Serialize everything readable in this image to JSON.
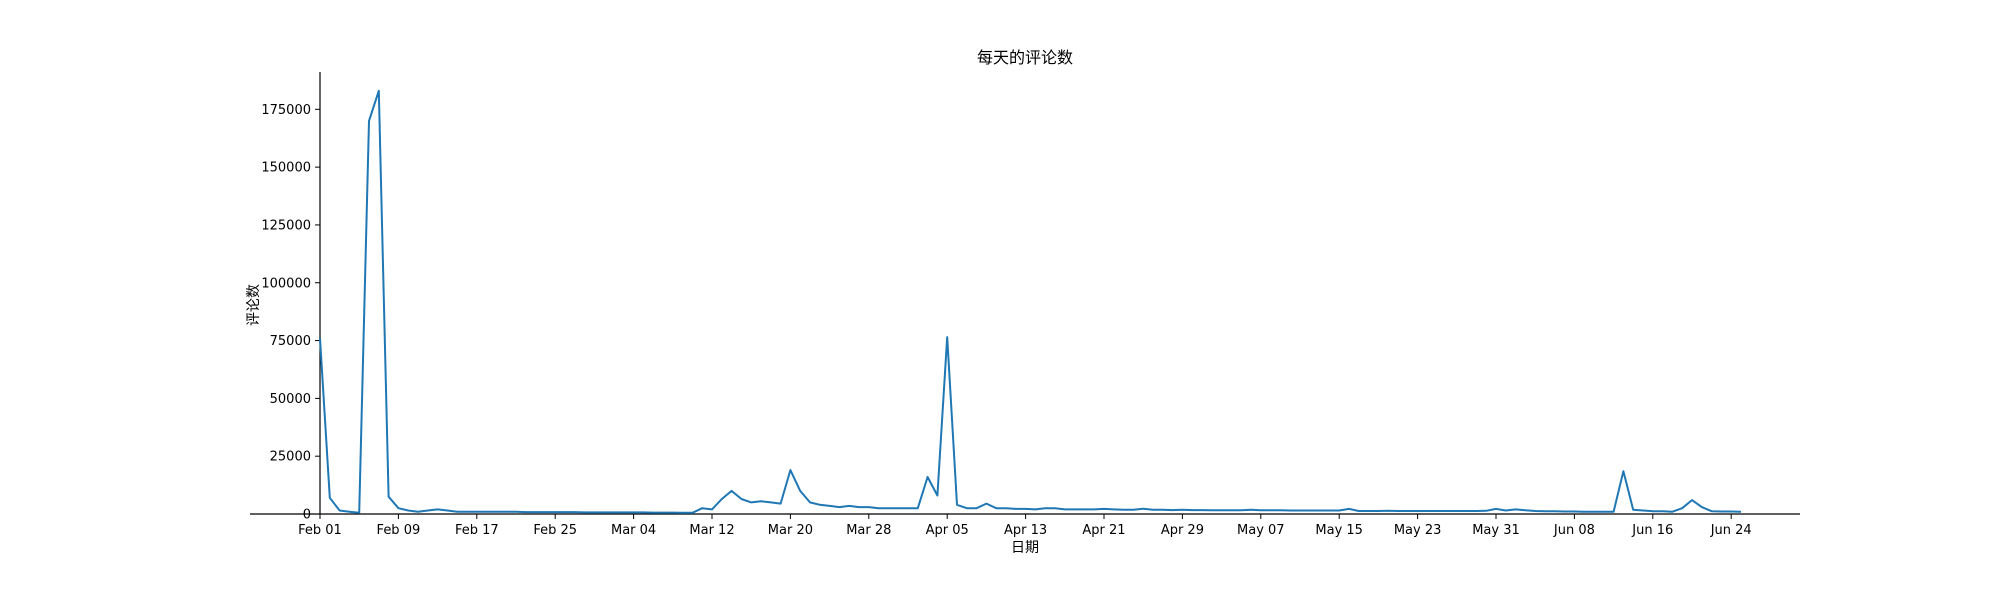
{
  "chart_data": {
    "type": "line",
    "title": "每天的评论数",
    "xlabel": "日期",
    "ylabel": "评论数",
    "grid": false,
    "legend": "none",
    "color": "#1f77b4",
    "start_date": "Feb 01",
    "xlim": [
      0,
      151
    ],
    "ylim": [
      0,
      192000
    ],
    "yticks": [
      0,
      25000,
      50000,
      75000,
      100000,
      125000,
      150000,
      175000
    ],
    "xtick_labels": [
      "Feb 01",
      "Feb 09",
      "Feb 17",
      "Feb 25",
      "Mar 04",
      "Mar 12",
      "Mar 20",
      "Mar 28",
      "Apr 05",
      "Apr 13",
      "Apr 21",
      "Apr 29",
      "May 07",
      "May 15",
      "May 23",
      "May 31",
      "Jun 08",
      "Jun 16",
      "Jun 24"
    ],
    "xtick_days": [
      0,
      8,
      16,
      24,
      32,
      40,
      48,
      56,
      64,
      72,
      80,
      88,
      96,
      104,
      112,
      120,
      128,
      136,
      144
    ],
    "x_days": [
      0,
      1,
      2,
      3,
      4,
      5,
      6,
      7,
      8,
      9,
      10,
      11,
      12,
      13,
      14,
      15,
      16,
      17,
      18,
      19,
      20,
      21,
      22,
      23,
      24,
      25,
      26,
      27,
      28,
      29,
      30,
      31,
      32,
      33,
      34,
      35,
      36,
      37,
      38,
      39,
      40,
      41,
      42,
      43,
      44,
      45,
      46,
      47,
      48,
      49,
      50,
      51,
      52,
      53,
      54,
      55,
      56,
      57,
      58,
      59,
      60,
      61,
      62,
      63,
      64,
      65,
      66,
      67,
      68,
      69,
      70,
      71,
      72,
      73,
      74,
      75,
      76,
      77,
      78,
      79,
      80,
      81,
      82,
      83,
      84,
      85,
      86,
      87,
      88,
      89,
      90,
      91,
      92,
      93,
      94,
      95,
      96,
      97,
      98,
      99,
      100,
      101,
      102,
      103,
      104,
      105,
      106,
      107,
      108,
      109,
      110,
      111,
      112,
      113,
      114,
      115,
      116,
      117,
      118,
      119,
      120,
      121,
      122,
      123,
      124,
      125,
      126,
      127,
      128,
      129,
      130,
      131,
      132,
      133,
      134,
      135,
      136,
      137,
      138,
      139,
      140,
      141,
      142,
      143,
      144,
      145
    ],
    "values": [
      76000,
      7000,
      1500,
      1000,
      500,
      170000,
      183000,
      7500,
      2500,
      1500,
      1000,
      1500,
      2000,
      1500,
      1000,
      1000,
      1000,
      1000,
      1000,
      1000,
      1000,
      800,
      800,
      800,
      800,
      800,
      800,
      700,
      700,
      700,
      700,
      700,
      700,
      700,
      600,
      600,
      600,
      500,
      500,
      2500,
      2000,
      6500,
      10000,
      6500,
      5000,
      5500,
      5000,
      4500,
      19000,
      10000,
      5000,
      4000,
      3500,
      3000,
      3500,
      3000,
      3000,
      2500,
      2500,
      2500,
      2500,
      2500,
      16000,
      8000,
      76500,
      4000,
      2500,
      2500,
      4500,
      2500,
      2500,
      2200,
      2200,
      2000,
      2500,
      2500,
      2000,
      2000,
      2000,
      2000,
      2200,
      2000,
      1800,
      1800,
      2300,
      1800,
      1800,
      1700,
      1800,
      1700,
      1700,
      1600,
      1600,
      1600,
      1600,
      1800,
      1600,
      1600,
      1600,
      1500,
      1500,
      1500,
      1500,
      1500,
      1500,
      2200,
      1300,
      1300,
      1300,
      1400,
      1300,
      1300,
      1300,
      1300,
      1300,
      1300,
      1300,
      1300,
      1300,
      1400,
      2200,
      1500,
      2000,
      1600,
      1300,
      1200,
      1200,
      1100,
      1100,
      1000,
      1000,
      1000,
      1000,
      18500,
      1800,
      1500,
      1200,
      1200,
      1000,
      2500,
      6000,
      3000,
      1200,
      1100,
      1100,
      1000
    ]
  }
}
